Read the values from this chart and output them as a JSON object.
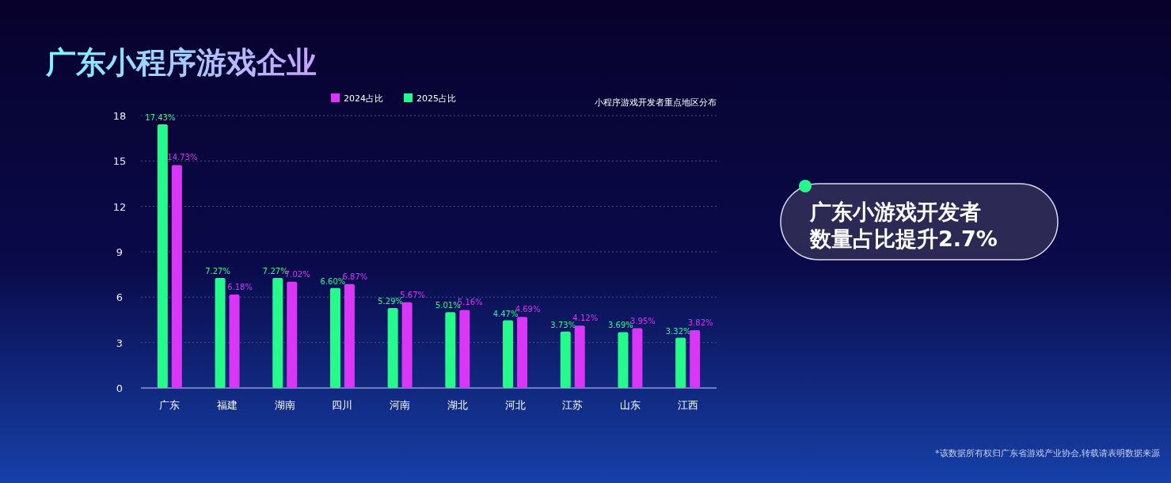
{
  "chart_data": {
    "type": "bar",
    "title": "广东小程序游戏企业",
    "subtitle": "小程序游戏开发者重点地区分布",
    "categories": [
      "广东",
      "福建",
      "湖南",
      "四川",
      "河南",
      "湖北",
      "河北",
      "江苏",
      "山东",
      "江西"
    ],
    "series": [
      {
        "name": "2025占比",
        "color": "#26fa8c",
        "values": [
          17.43,
          7.27,
          7.27,
          6.6,
          5.29,
          5.01,
          4.47,
          3.73,
          3.69,
          3.32
        ],
        "value_labels": [
          "17.43%",
          "7.27%",
          "7.27%",
          "6.60%",
          "5.29%",
          "5.01%",
          "4.47%",
          "3.73%",
          "3.69%",
          "3.32%"
        ]
      },
      {
        "name": "2024占比",
        "color": "#d936f5",
        "values": [
          14.73,
          6.18,
          7.02,
          6.87,
          5.67,
          5.16,
          4.69,
          4.12,
          3.95,
          3.82
        ],
        "value_labels": [
          "14.73%",
          "6.18%",
          "7.02%",
          "6.87%",
          "5.67%",
          "5.16%",
          "4.69%",
          "4.12%",
          "3.95%",
          "3.82%"
        ]
      }
    ],
    "ylim": [
      0,
      18
    ],
    "yticks": [
      0,
      3,
      6,
      9,
      12,
      15,
      18
    ],
    "grid": "y",
    "legend": "top",
    "annotations": [
      "广东小游戏开发者数量占比提升2.7%",
      "*该数据所有权归广东省游戏产业协会,转载请表明数据来源"
    ]
  }
}
